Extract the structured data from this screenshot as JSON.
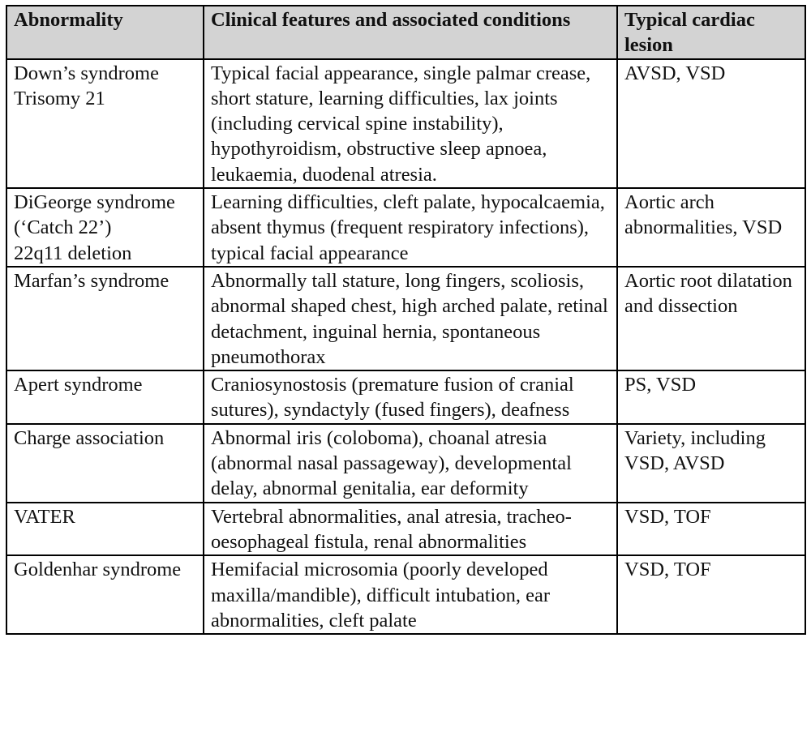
{
  "table": {
    "headers": [
      "Abnormality",
      "Clinical features and associated conditions",
      "Typical cardiac lesion"
    ],
    "rows": [
      {
        "abnormality": "Down’s syndrome\nTrisomy 21",
        "features": "Typical facial appearance, single palmar crease, short stature, learning difficulties, lax joints (including cervical spine instability), hypothyroidism, obstructive sleep apnoea, leukaemia, duodenal atresia.",
        "lesion": "AVSD, VSD"
      },
      {
        "abnormality": "DiGeorge syndrome (‘Catch 22’)\n22q11 deletion",
        "features": "Learning difficulties, cleft palate, hypocalcaemia, absent thymus (frequent respiratory infections), typical facial appearance",
        "lesion": "Aortic arch abnormalities, VSD"
      },
      {
        "abnormality": "Marfan’s syndrome",
        "features": "Abnormally tall stature, long fingers, scoliosis, abnormal shaped chest, high arched palate, retinal detachment, inguinal hernia, spontaneous pneumothorax",
        "lesion": "Aortic root dilatation and dissection"
      },
      {
        "abnormality": "Apert syndrome",
        "features": "Craniosynostosis (premature fusion of cranial sutures), syndactyly (fused fingers), deafness",
        "lesion": "PS, VSD"
      },
      {
        "abnormality": "Charge association",
        "features": "Abnormal iris (coloboma), choanal atresia (abnormal nasal passageway), developmental delay, abnormal genitalia, ear deformity",
        "lesion": "Variety, including VSD, AVSD"
      },
      {
        "abnormality": "VATER",
        "features": "Vertebral abnormalities, anal atresia, tracheo-oesophageal fistula, renal abnormalities",
        "lesion": "VSD, TOF"
      },
      {
        "abnormality": "Goldenhar syndrome",
        "features": "Hemifacial microsomia (poorly developed maxilla/mandible), difficult intubation, ear abnormalities, cleft palate",
        "lesion": "VSD, TOF"
      }
    ]
  },
  "colors": {
    "header_background": "#d3d3d3",
    "border": "#000000",
    "text": "#111111"
  }
}
